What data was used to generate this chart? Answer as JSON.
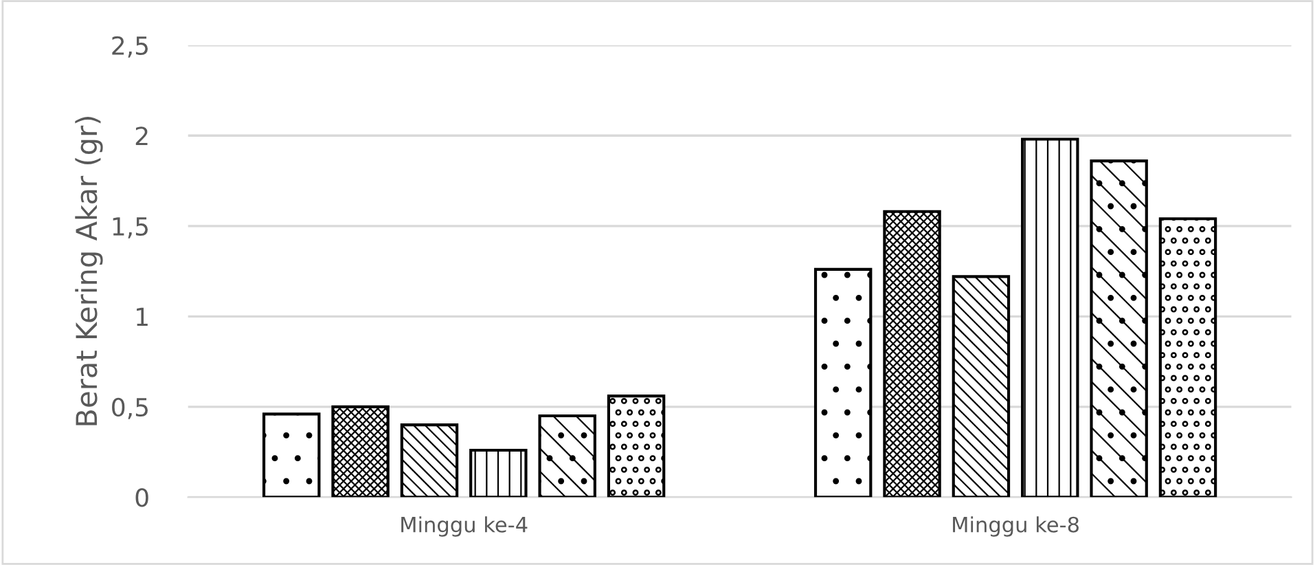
{
  "chart_data": {
    "type": "bar",
    "ylabel": "Berat Kering Akar (gr)",
    "categories": [
      "Minggu ke-4",
      "Minggu ke-8"
    ],
    "series": [
      {
        "color": "#000000",
        "values": [
          0.46,
          1.26
        ]
      },
      {
        "color": "#000000",
        "values": [
          0.5,
          1.58
        ]
      },
      {
        "color": "#000000",
        "values": [
          0.4,
          1.22
        ]
      },
      {
        "color": "#000000",
        "values": [
          0.26,
          1.98
        ]
      },
      {
        "color": "#000000",
        "values": [
          0.45,
          1.86
        ]
      },
      {
        "color": "#000000",
        "values": [
          0.56,
          1.54
        ]
      }
    ],
    "ylim": [
      0,
      2.5
    ],
    "yticks": [
      0,
      {
        "value": 0.5,
        "label": "0,5"
      },
      1,
      {
        "value": 1.5,
        "label": "1,5"
      },
      2,
      {
        "value": 2.5,
        "label": "2,5"
      }
    ],
    "grid": "y",
    "legend": false
  }
}
